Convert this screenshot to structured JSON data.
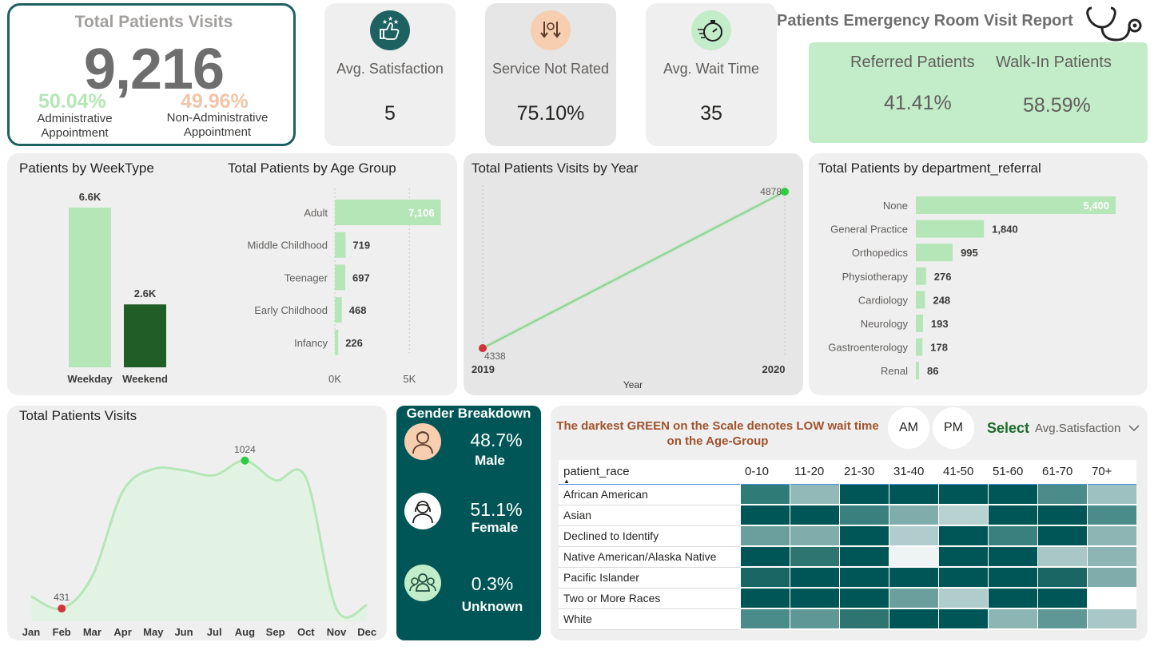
{
  "total_visits": {
    "title": "Total Patients Visits",
    "value": "9,216",
    "admin_pct": "50.04%",
    "admin_label_1": "Administrative",
    "admin_label_2": "Appointment",
    "nonadmin_pct": "49.96%",
    "nonadmin_label_1": "Non-Administrative",
    "nonadmin_label_2": "Appointment",
    "admin_color": "#b5e6b7",
    "nonadmin_color": "#f2c4a8"
  },
  "kpis": [
    {
      "title": "Avg. Satisfaction",
      "value": "5",
      "icon": "thumbs-up-stars-icon",
      "icon_color": "#1d6161"
    },
    {
      "title": "Service Not Rated",
      "value": "75.10%",
      "icon": "arrows-down-icon",
      "icon_color": "#f7ceb0"
    },
    {
      "title": "Avg. Wait Time",
      "value": "35",
      "icon": "stopwatch-icon",
      "icon_color": "#c3ecc8"
    }
  ],
  "report": {
    "title": "Patients Emergency Room Visit Report",
    "icon": "stethoscope-icon"
  },
  "referral": {
    "referred_label": "Referred Patients",
    "referred_value": "41.41%",
    "walkin_label": "Walk-In Patients",
    "walkin_value": "58.59%"
  },
  "weektype": {
    "title": "Patients by WeekType",
    "chart_data": {
      "type": "bar",
      "categories": [
        "Weekday",
        "Weekend"
      ],
      "values": [
        6600,
        2600
      ],
      "data_labels": [
        "6.6K",
        "2.6K"
      ]
    }
  },
  "age_group": {
    "title": "Total Patients by Age Group",
    "chart_data": {
      "type": "bar",
      "orientation": "horizontal",
      "categories": [
        "Adult",
        "Middle Childhood",
        "Teenager",
        "Early Childhood",
        "Infancy"
      ],
      "values": [
        7106,
        719,
        697,
        468,
        226
      ],
      "data_labels": [
        "7,106",
        "719",
        "697",
        "468",
        "226"
      ],
      "xticks": [
        "0K",
        "5K"
      ],
      "xlim": [
        0,
        7500
      ]
    }
  },
  "by_year": {
    "title": "Total Patients Visits by Year",
    "chart_data": {
      "type": "line",
      "x": [
        "2019",
        "2020"
      ],
      "values": [
        4338,
        4878
      ],
      "data_labels": [
        "4338",
        "4878"
      ],
      "xlabel": "Year"
    }
  },
  "department": {
    "title": "Total Patients by department_referral",
    "chart_data": {
      "type": "bar",
      "orientation": "horizontal",
      "categories": [
        "None",
        "General Practice",
        "Orthopedics",
        "Physiotherapy",
        "Cardiology",
        "Neurology",
        "Gastroenterology",
        "Renal"
      ],
      "values": [
        5400,
        1840,
        995,
        276,
        248,
        193,
        178,
        86
      ],
      "data_labels": [
        "5,400",
        "1,840",
        "995",
        "276",
        "248",
        "193",
        "178",
        "86"
      ]
    }
  },
  "monthly": {
    "title": "Total Patients Visits",
    "chart_data": {
      "type": "area",
      "x": [
        "Jan",
        "Feb",
        "Mar",
        "Apr",
        "May",
        "Jun",
        "Jul",
        "Aug",
        "Sep",
        "Oct",
        "Nov",
        "Dec"
      ],
      "values": [
        480,
        431,
        560,
        900,
        990,
        985,
        965,
        1024,
        945,
        955,
        430,
        445
      ],
      "data_labels": {
        "Feb": "431",
        "Aug": "1024"
      },
      "ylim": [
        380,
        1100
      ]
    }
  },
  "gender": {
    "title": "Gender Breakdown",
    "items": [
      {
        "pct": "48.7%",
        "label": "Male",
        "icon": "male-avatar-icon",
        "icon_color": "#f7ceb0"
      },
      {
        "pct": "51.1%",
        "label": "Female",
        "icon": "female-avatar-icon",
        "icon_color": "#ffffff"
      },
      {
        "pct": "0.3%",
        "label": "Unknown",
        "icon": "group-icon",
        "icon_color": "#c3ecc8"
      }
    ]
  },
  "heatmap": {
    "note": "The darkest GREEN on the Scale denotes LOW wait time on the Age-Group",
    "am": "AM",
    "pm": "PM",
    "select_label": "Select",
    "select_value": "Avg.Satisfaction",
    "row_header": "patient_race",
    "columns": [
      "0-10",
      "11-20",
      "21-30",
      "31-40",
      "41-50",
      "51-60",
      "61-70",
      "70+"
    ],
    "rows": [
      {
        "race": "African American",
        "cells": [
          "#2e7b78",
          "#92b9b8",
          "#005656",
          "#005656",
          "#005656",
          "#005656",
          "#4a8c8a",
          "#9dc1c0"
        ]
      },
      {
        "race": "Asian",
        "cells": [
          "#005656",
          "#005656",
          "#3a807e",
          "#7fadac",
          "#b8d1d1",
          "#005656",
          "#005656",
          "#4a8c8a"
        ]
      },
      {
        "race": "Declined to Identify",
        "cells": [
          "#6a9f9d",
          "#7fadac",
          "#005656",
          "#b1cccc",
          "#005656",
          "#3a807e",
          "#005656",
          "#8db5b4"
        ]
      },
      {
        "race": "Native American/Alaska Native",
        "cells": [
          "#005656",
          "#2e7470",
          "#005656",
          "#eef4f4",
          "#005656",
          "#005656",
          "#a9c7c6",
          "#8db5b4"
        ]
      },
      {
        "race": "Pacific Islander",
        "cells": [
          "#1a6664",
          "#005656",
          "#005656",
          "#005656",
          "#005656",
          "#005656",
          "#1a6664",
          "#7fadac"
        ]
      },
      {
        "race": "Two or More Races",
        "cells": [
          "#005656",
          "#005656",
          "#005656",
          "#6a9f9d",
          "#b1cccc",
          "#005656",
          "#005656",
          "#ffffff"
        ]
      },
      {
        "race": "White",
        "cells": [
          "#4a8c8a",
          "#5e9796",
          "#2e7470",
          "#005656",
          "#005656",
          "#8db5b4",
          "#5e9796",
          "#a9c7c6"
        ]
      }
    ]
  }
}
